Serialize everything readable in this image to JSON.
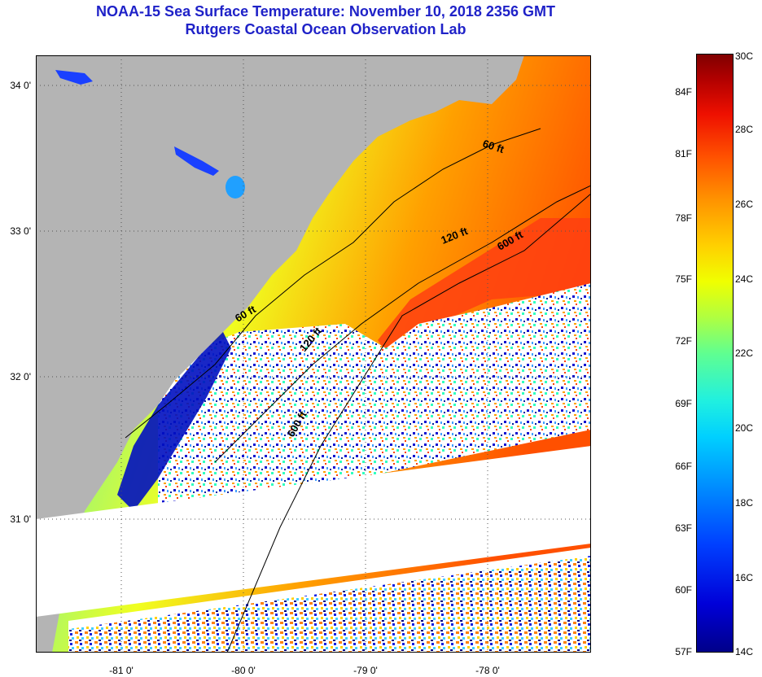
{
  "title": {
    "line1": "NOAA-15 Sea Surface Temperature:  November 10, 2018 2356 GMT",
    "line2": "Rutgers Coastal Ocean Observation Lab"
  },
  "map": {
    "lat_labels": [
      "34 0'",
      "33 0'",
      "32 0'",
      "31 0'"
    ],
    "lon_labels": [
      "-81 0'",
      "-80 0'",
      "-79 0'",
      "-78 0'"
    ],
    "depth_labels": [
      "60 ft",
      "120 ft",
      "600 ft",
      "60 ft",
      "120 ft",
      "600 ft"
    ],
    "colors": {
      "land": "#b4b4b4",
      "cloud": "#ffffff"
    }
  },
  "colorbar": {
    "fahrenheit": [
      "84F",
      "81F",
      "78F",
      "75F",
      "72F",
      "69F",
      "66F",
      "63F",
      "60F",
      "57F"
    ],
    "celsius": [
      "30C",
      "28C",
      "26C",
      "24C",
      "22C",
      "20C",
      "18C",
      "16C",
      "14C"
    ]
  }
}
